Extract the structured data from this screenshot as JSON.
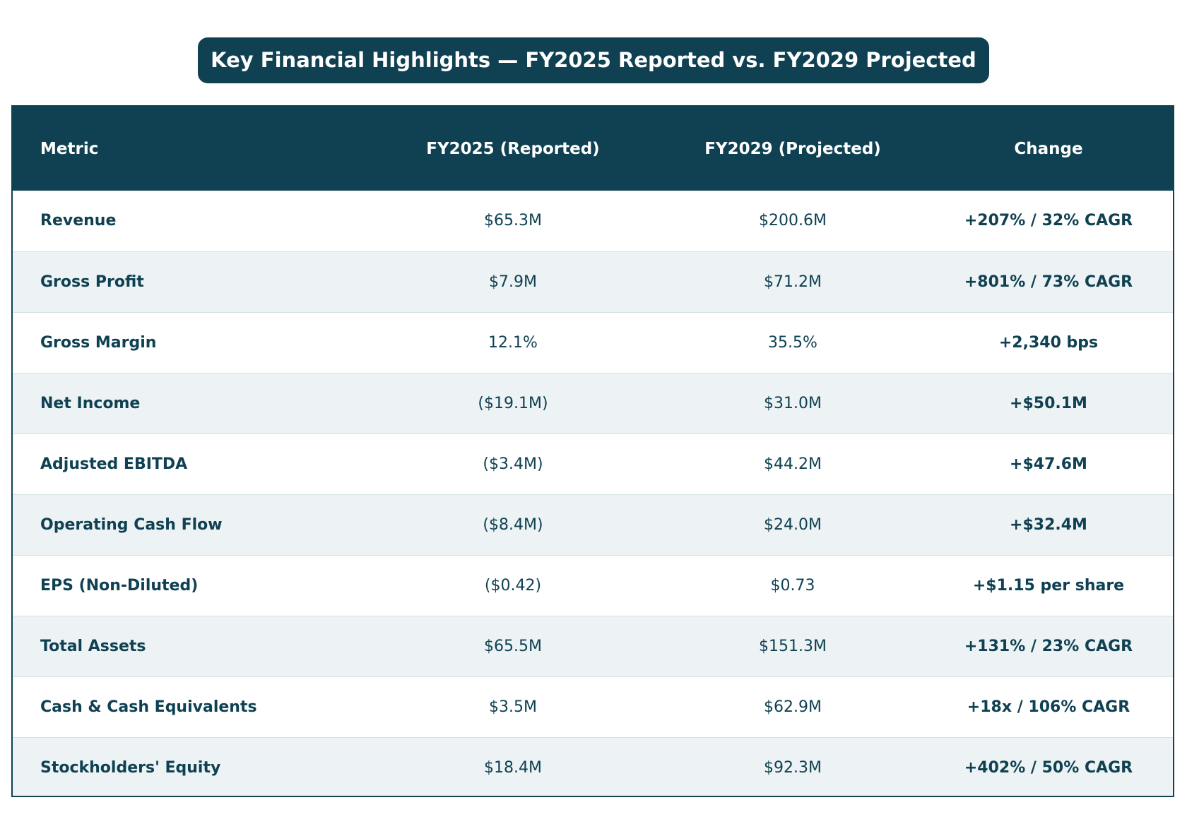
{
  "title": "Key Financial Highlights — FY2025 Reported vs. FY2029 Projected",
  "colors": {
    "header_bg": "#0f4152",
    "alt_row_bg": "#edf2f4",
    "text": "#0f4152"
  },
  "chart_data": {
    "type": "table",
    "title": "Key Financial Highlights — FY2025 Reported vs. FY2029 Projected",
    "columns": [
      "Metric",
      "FY2025 (Reported)",
      "FY2029 (Projected)",
      "Change"
    ],
    "rows": [
      [
        "Revenue",
        "$65.3M",
        "$200.6M",
        "+207% / 32% CAGR"
      ],
      [
        "Gross Profit",
        "$7.9M",
        "$71.2M",
        "+801% / 73% CAGR"
      ],
      [
        "Gross Margin",
        "12.1%",
        "35.5%",
        "+2,340 bps"
      ],
      [
        "Net Income",
        "($19.1M)",
        "$31.0M",
        "+$50.1M"
      ],
      [
        "Adjusted EBITDA",
        "($3.4M)",
        "$44.2M",
        "+$47.6M"
      ],
      [
        "Operating Cash Flow",
        "($8.4M)",
        "$24.0M",
        "+$32.4M"
      ],
      [
        "EPS (Non-Diluted)",
        "($0.42)",
        "$0.73",
        "+$1.15 per share"
      ],
      [
        "Total Assets",
        "$65.5M",
        "$151.3M",
        "+131% / 23% CAGR"
      ],
      [
        "Cash & Cash Equivalents",
        "$3.5M",
        "$62.9M",
        "+18x / 106% CAGR"
      ],
      [
        "Stockholders' Equity",
        "$18.4M",
        "$92.3M",
        "+402% / 50% CAGR"
      ]
    ]
  }
}
